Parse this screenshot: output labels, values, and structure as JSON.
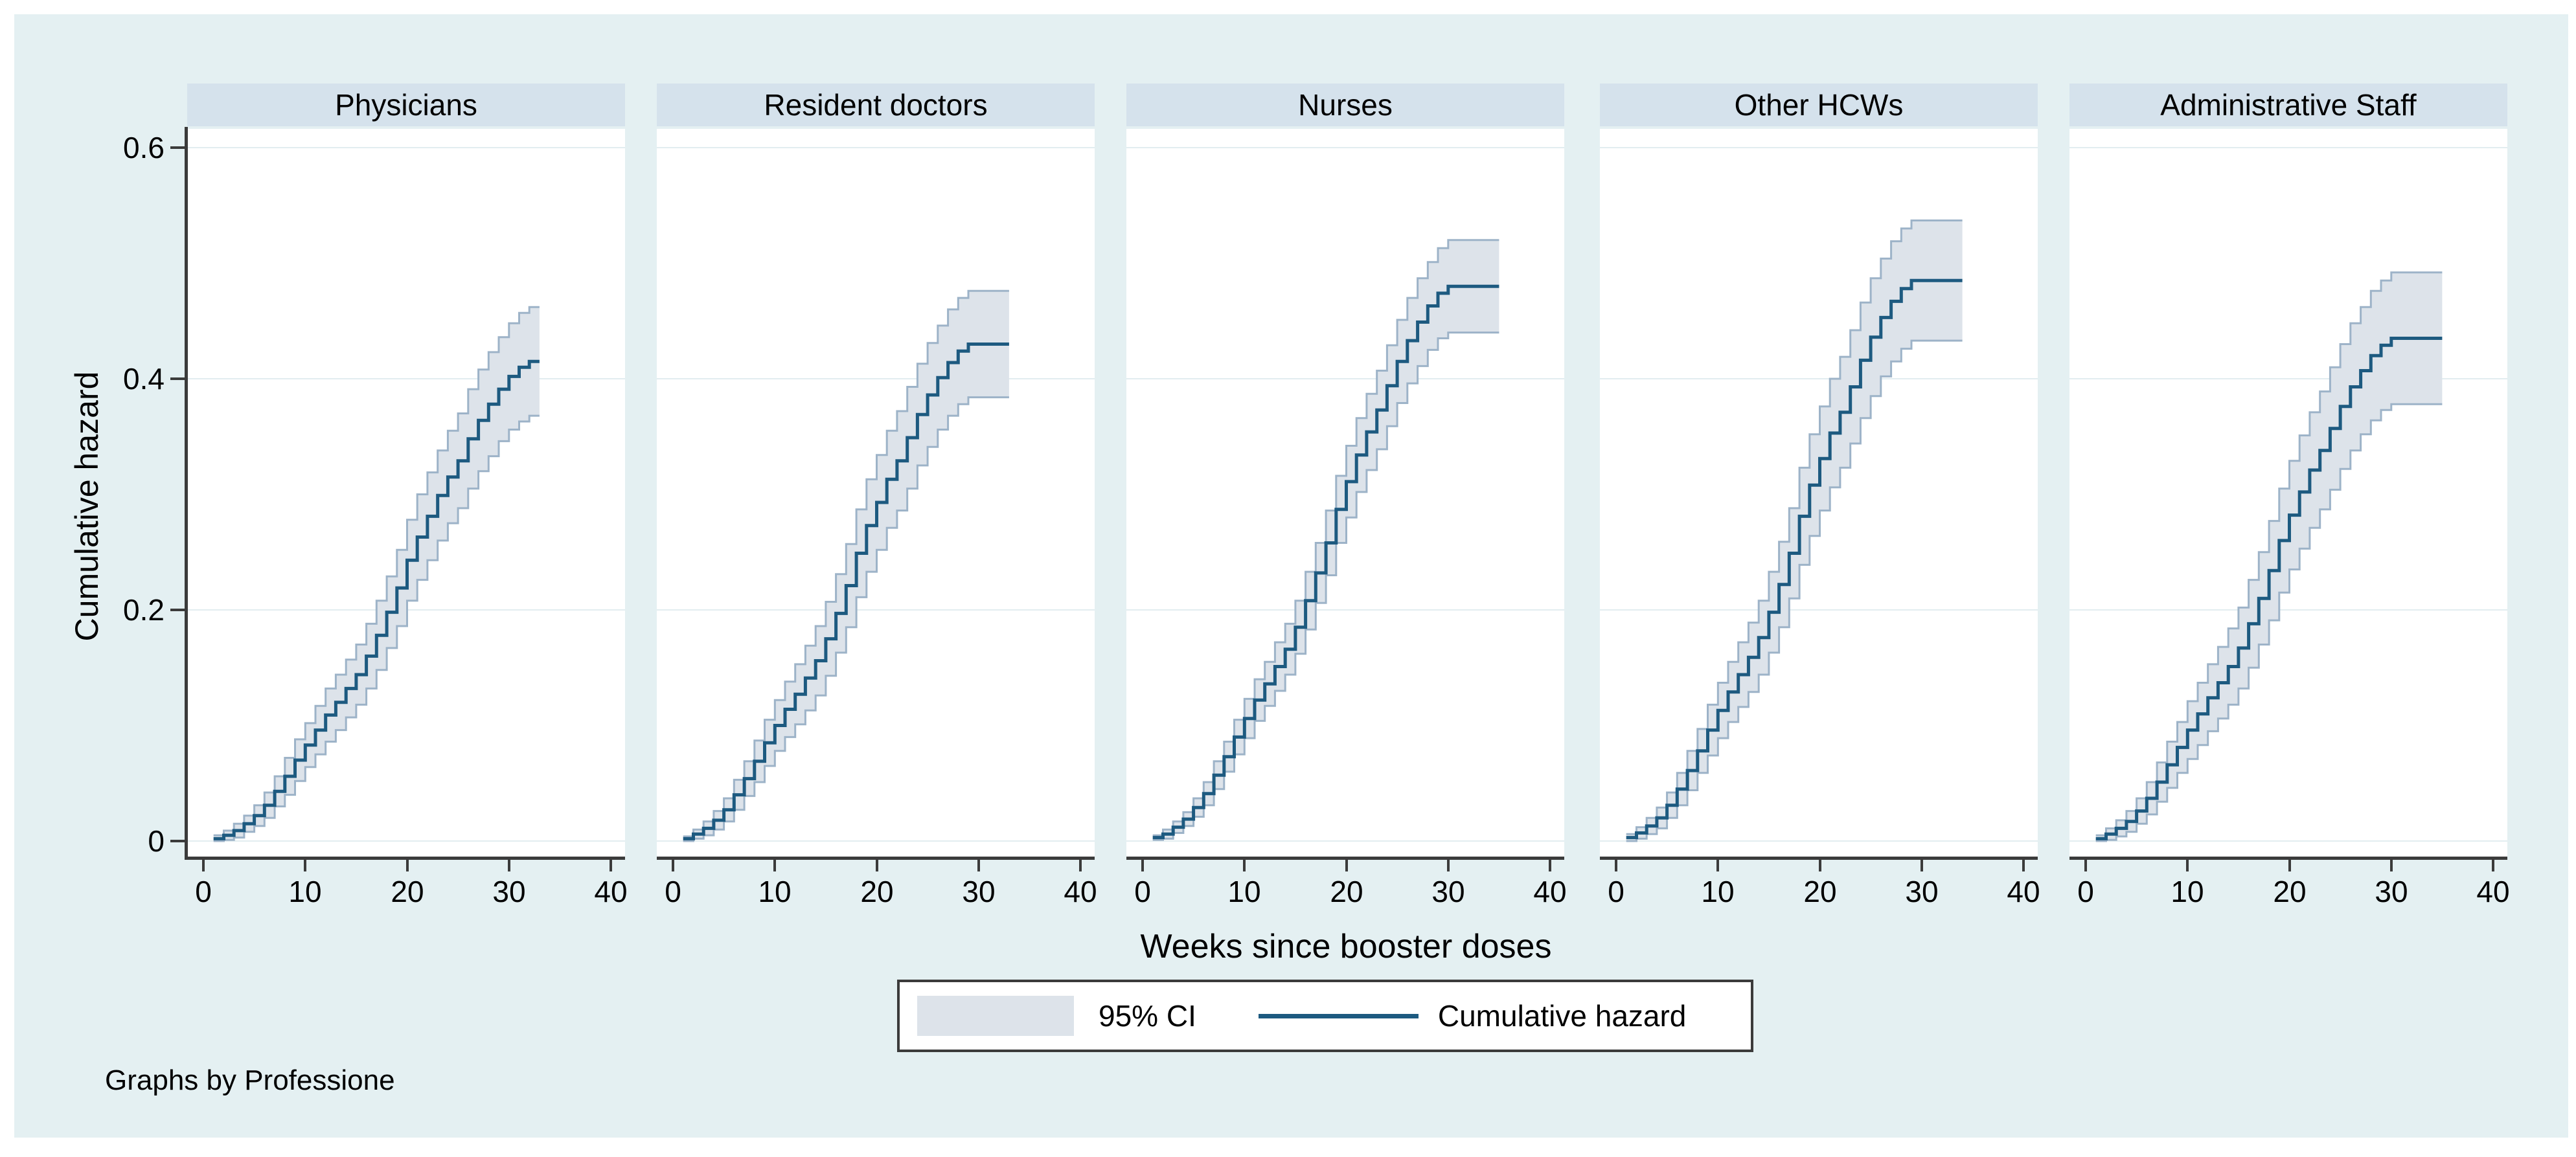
{
  "figure": {
    "y_axis_title": "Cumulative hazard",
    "x_axis_title": "Weeks since booster doses",
    "footnote": "Graphs by Professione",
    "legend": {
      "ci_label": "95% CI",
      "line_label": "Cumulative hazard"
    },
    "x_tick_labels": [
      "0",
      "10",
      "20",
      "30",
      "40"
    ],
    "x_tick_values": [
      0,
      10,
      20,
      30,
      40
    ],
    "y_tick_labels": [
      "0.6",
      "0.4",
      "0.2",
      "0"
    ],
    "y_tick_values": [
      0.6,
      0.4,
      0.2,
      0
    ],
    "colors": {
      "figure_background": "#e4f0f2",
      "panel_header_band": "#d5e2ec",
      "plot_background": "#ffffff",
      "gridline": "#e2edf0",
      "hazard_line": "#1d5a80",
      "ci_fill": "#dde3ea",
      "ci_edge": "#9db3c8",
      "axis": "#3b3b3b",
      "text": "#000000"
    }
  },
  "chart_data": {
    "type": "line",
    "subtype": "step-cumulative-hazard-with-ci-band",
    "facet_by": "Professione",
    "xlabel": "Weeks since booster doses",
    "ylabel": "Cumulative hazard",
    "xlim": [
      0,
      42
    ],
    "ylim": [
      0,
      0.63
    ],
    "x_ticks": [
      0,
      10,
      20,
      30,
      40
    ],
    "y_ticks": [
      0,
      0.2,
      0.4,
      0.6
    ],
    "grid": true,
    "legend_entries": [
      "95% CI",
      "Cumulative hazard"
    ],
    "weeks_start": 1,
    "weeks_step": 1,
    "panels": [
      {
        "label": "Physicians",
        "values": [
          0.002,
          0.005,
          0.009,
          0.015,
          0.022,
          0.031,
          0.043,
          0.056,
          0.07,
          0.083,
          0.096,
          0.109,
          0.12,
          0.132,
          0.144,
          0.16,
          0.178,
          0.198,
          0.219,
          0.243,
          0.263,
          0.281,
          0.299,
          0.315,
          0.329,
          0.348,
          0.364,
          0.378,
          0.391,
          0.402,
          0.41,
          0.415,
          0.415
        ],
        "ci_halfwidth": [
          0.003,
          0.004,
          0.006,
          0.007,
          0.009,
          0.011,
          0.013,
          0.016,
          0.018,
          0.019,
          0.021,
          0.023,
          0.024,
          0.025,
          0.026,
          0.028,
          0.03,
          0.031,
          0.033,
          0.035,
          0.037,
          0.038,
          0.039,
          0.04,
          0.041,
          0.043,
          0.044,
          0.045,
          0.045,
          0.046,
          0.047,
          0.047,
          0.047
        ]
      },
      {
        "label": "Resident doctors",
        "values": [
          0.002,
          0.006,
          0.011,
          0.018,
          0.027,
          0.04,
          0.054,
          0.069,
          0.085,
          0.1,
          0.114,
          0.127,
          0.141,
          0.156,
          0.175,
          0.197,
          0.221,
          0.249,
          0.273,
          0.293,
          0.313,
          0.329,
          0.349,
          0.369,
          0.386,
          0.401,
          0.414,
          0.424,
          0.43,
          0.43,
          0.43,
          0.43,
          0.43
        ],
        "ci_halfwidth": [
          0.002,
          0.004,
          0.006,
          0.008,
          0.01,
          0.013,
          0.015,
          0.018,
          0.02,
          0.022,
          0.024,
          0.026,
          0.028,
          0.03,
          0.032,
          0.034,
          0.036,
          0.038,
          0.04,
          0.041,
          0.042,
          0.043,
          0.044,
          0.044,
          0.045,
          0.045,
          0.046,
          0.046,
          0.046,
          0.046,
          0.046,
          0.046,
          0.046
        ]
      },
      {
        "label": "Nurses",
        "values": [
          0.003,
          0.006,
          0.012,
          0.019,
          0.029,
          0.041,
          0.057,
          0.073,
          0.09,
          0.106,
          0.122,
          0.136,
          0.151,
          0.166,
          0.185,
          0.208,
          0.232,
          0.258,
          0.287,
          0.311,
          0.334,
          0.354,
          0.373,
          0.394,
          0.415,
          0.433,
          0.449,
          0.463,
          0.474,
          0.48,
          0.48,
          0.48,
          0.48,
          0.48,
          0.48
        ],
        "ci_halfwidth": [
          0.002,
          0.004,
          0.005,
          0.006,
          0.008,
          0.01,
          0.012,
          0.013,
          0.015,
          0.017,
          0.018,
          0.019,
          0.021,
          0.022,
          0.023,
          0.025,
          0.026,
          0.028,
          0.029,
          0.031,
          0.032,
          0.033,
          0.034,
          0.035,
          0.036,
          0.037,
          0.038,
          0.038,
          0.039,
          0.04,
          0.04,
          0.04,
          0.04,
          0.04,
          0.04
        ]
      },
      {
        "label": "Other HCWs",
        "values": [
          0.003,
          0.007,
          0.013,
          0.02,
          0.031,
          0.045,
          0.061,
          0.078,
          0.096,
          0.113,
          0.129,
          0.144,
          0.159,
          0.176,
          0.198,
          0.222,
          0.249,
          0.281,
          0.308,
          0.331,
          0.353,
          0.371,
          0.393,
          0.416,
          0.436,
          0.453,
          0.467,
          0.478,
          0.485,
          0.485,
          0.485,
          0.485,
          0.485,
          0.485
        ],
        "ci_halfwidth": [
          0.003,
          0.005,
          0.007,
          0.009,
          0.011,
          0.014,
          0.017,
          0.019,
          0.022,
          0.024,
          0.026,
          0.028,
          0.03,
          0.032,
          0.035,
          0.037,
          0.039,
          0.042,
          0.044,
          0.045,
          0.047,
          0.048,
          0.049,
          0.05,
          0.051,
          0.051,
          0.052,
          0.052,
          0.052,
          0.052,
          0.052,
          0.052,
          0.052,
          0.052
        ]
      },
      {
        "label": "Administrative Staff",
        "values": [
          0.002,
          0.006,
          0.011,
          0.017,
          0.026,
          0.037,
          0.051,
          0.066,
          0.081,
          0.096,
          0.11,
          0.124,
          0.137,
          0.151,
          0.167,
          0.188,
          0.21,
          0.234,
          0.26,
          0.282,
          0.302,
          0.321,
          0.338,
          0.357,
          0.376,
          0.393,
          0.407,
          0.42,
          0.429,
          0.435,
          0.435,
          0.435,
          0.435,
          0.435,
          0.435
        ],
        "ci_halfwidth": [
          0.003,
          0.005,
          0.007,
          0.009,
          0.011,
          0.014,
          0.017,
          0.02,
          0.022,
          0.025,
          0.027,
          0.029,
          0.031,
          0.033,
          0.035,
          0.038,
          0.04,
          0.043,
          0.045,
          0.047,
          0.049,
          0.05,
          0.051,
          0.053,
          0.054,
          0.055,
          0.055,
          0.056,
          0.056,
          0.057,
          0.057,
          0.057,
          0.057,
          0.057,
          0.057
        ]
      }
    ]
  }
}
